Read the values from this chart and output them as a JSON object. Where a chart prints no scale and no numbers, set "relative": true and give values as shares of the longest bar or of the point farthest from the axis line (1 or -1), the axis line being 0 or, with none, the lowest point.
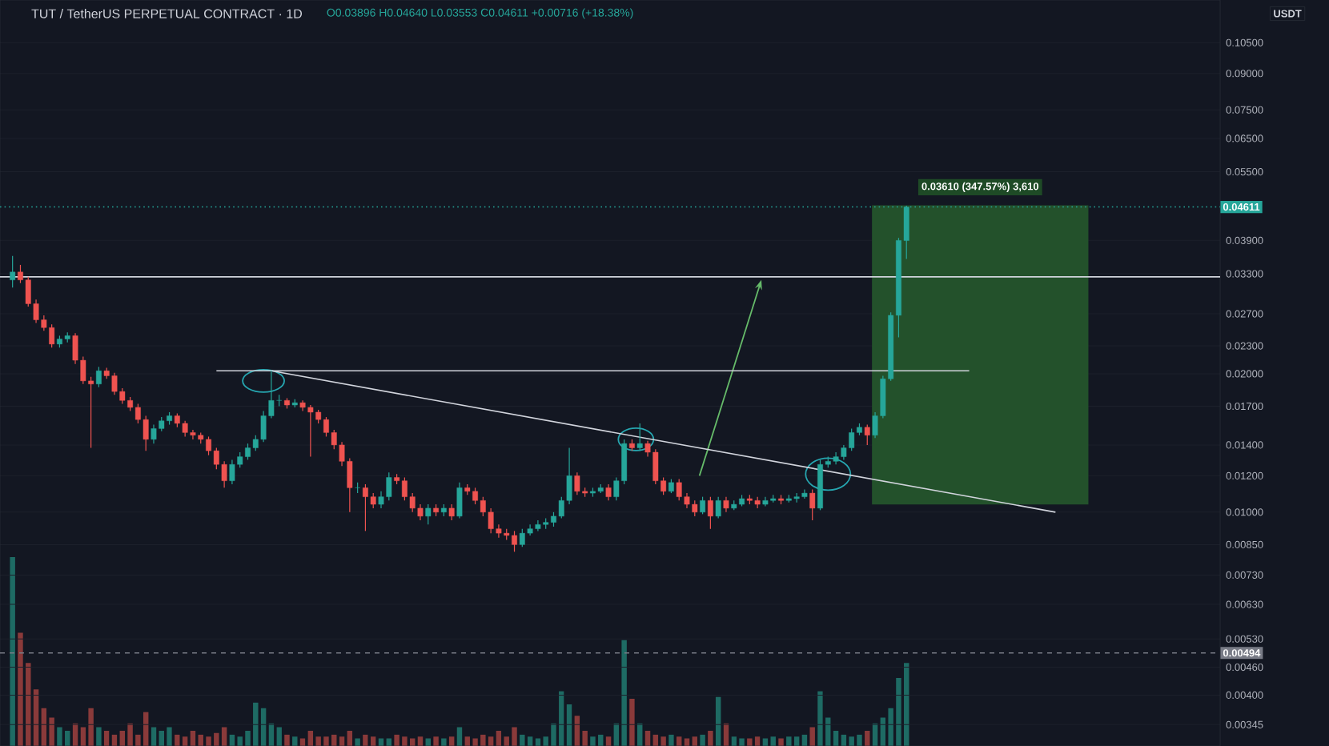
{
  "chart_data": [
    {
      "type": "candlestick",
      "title": "TUT / TetherUS PERPETUAL CONTRACT · 1D",
      "subtitle": "O0.03896 H0.04640 L0.03553 C0.04611 +0.00716 (+18.38%)",
      "ylabel": "USDT",
      "bands": [
        {
          "axis": "y",
          "from": 0.01039,
          "to": 0.04649,
          "label": "0.03610 (347.57%) 3,610",
          "color": "#23512b"
        }
      ],
      "log": "y",
      "grid": "y",
      "ylim": [
        0.0031,
        0.13
      ],
      "yticks": [
        {
          "value": 0.105,
          "label": "0.10500"
        },
        {
          "value": 0.09,
          "label": "0.09000"
        },
        {
          "value": 0.075,
          "label": "0.07500"
        },
        {
          "value": 0.065,
          "label": "0.06500"
        },
        {
          "value": 0.055,
          "label": "0.05500"
        },
        {
          "value": 0.039,
          "label": "0.03900"
        },
        {
          "value": 0.033,
          "label": "0.03300"
        },
        {
          "value": 0.027,
          "label": "0.02700"
        },
        {
          "value": 0.023,
          "label": "0.02300"
        },
        {
          "value": 0.02,
          "label": "0.02000"
        },
        {
          "value": 0.017,
          "label": "0.01700"
        },
        {
          "value": 0.014,
          "label": "0.01400"
        },
        {
          "value": 0.012,
          "label": "0.01200"
        },
        {
          "value": 0.01,
          "label": "0.01000"
        },
        {
          "value": 0.0085,
          "label": "0.00850"
        },
        {
          "value": 0.0073,
          "label": "0.00730"
        },
        {
          "value": 0.0063,
          "label": "0.00630"
        },
        {
          "value": 0.0053,
          "label": "0.00530"
        },
        {
          "value": 0.0046,
          "label": "0.00460"
        },
        {
          "value": 0.004,
          "label": "0.00400"
        },
        {
          "value": 0.00345,
          "label": "0.00345"
        }
      ],
      "ref_lines": [
        {
          "axis": "y",
          "value": 0.0325,
          "color": "#d1d4dc",
          "line_style": "solid"
        },
        {
          "axis": "y",
          "value": 0.04611,
          "label": "0.04611",
          "color": "#26a69a",
          "line_style": "dotted"
        },
        {
          "axis": "y",
          "value": 0.00494,
          "label": "0.00494",
          "color": "#787b86",
          "line_style": "dashed"
        }
      ],
      "categories": [
        null,
        null,
        null,
        null,
        null,
        null,
        null,
        null,
        null,
        null,
        null,
        null,
        null,
        null,
        null,
        null,
        null,
        null,
        null,
        null,
        null,
        null,
        null,
        null,
        null,
        null,
        null,
        null,
        null,
        null,
        null,
        null,
        null,
        null,
        null,
        null,
        null,
        null,
        null,
        null,
        null,
        null,
        null,
        null,
        null,
        null,
        null,
        null,
        null,
        null,
        null,
        null,
        null,
        null,
        null,
        null,
        null,
        null,
        null,
        null,
        null,
        null,
        null,
        null,
        null,
        null,
        null,
        null,
        null,
        null,
        null,
        null,
        null,
        null,
        null,
        null,
        null,
        null,
        null,
        null,
        null,
        null,
        null,
        null,
        null,
        null,
        null,
        null,
        null,
        null,
        null,
        null,
        null,
        null,
        null,
        null,
        null,
        null,
        null,
        null,
        null,
        null,
        null,
        null,
        null,
        null,
        null,
        null,
        null,
        null,
        null,
        null,
        null,
        null,
        null,
        null,
        null,
        null,
        null,
        null,
        null,
        null,
        null,
        null,
        null,
        null,
        null,
        null,
        null,
        null,
        null,
        null,
        null,
        null,
        null,
        null,
        null,
        null,
        null,
        null,
        null,
        null,
        null,
        null,
        null,
        null,
        null,
        null,
        null,
        null,
        null,
        null,
        null,
        null
      ],
      "ohlc": [
        [
          0.032,
          0.0361,
          0.0308,
          0.0333
        ],
        [
          0.0333,
          0.0345,
          0.0315,
          0.032
        ],
        [
          0.032,
          0.0325,
          0.028,
          0.0284
        ],
        [
          0.0284,
          0.029,
          0.0258,
          0.0262
        ],
        [
          0.0262,
          0.0268,
          0.0248,
          0.0252
        ],
        [
          0.0252,
          0.0256,
          0.0228,
          0.0232
        ],
        [
          0.0232,
          0.0242,
          0.0228,
          0.0238
        ],
        [
          0.0238,
          0.0246,
          0.0234,
          0.0242
        ],
        [
          0.0242,
          0.0245,
          0.021,
          0.0214
        ],
        [
          0.0214,
          0.0218,
          0.019,
          0.0193
        ],
        [
          0.0193,
          0.0197,
          0.0138,
          0.019
        ],
        [
          0.019,
          0.0207,
          0.0187,
          0.0203
        ],
        [
          0.0203,
          0.0206,
          0.0195,
          0.0198
        ],
        [
          0.0198,
          0.0201,
          0.018,
          0.0183
        ],
        [
          0.0183,
          0.0186,
          0.0172,
          0.0175
        ],
        [
          0.0175,
          0.0178,
          0.0166,
          0.0169
        ],
        [
          0.0169,
          0.0172,
          0.0156,
          0.0159
        ],
        [
          0.0159,
          0.0162,
          0.0136,
          0.0144
        ],
        [
          0.0144,
          0.0155,
          0.0141,
          0.0152
        ],
        [
          0.0152,
          0.0161,
          0.015,
          0.0158
        ],
        [
          0.0158,
          0.0165,
          0.0155,
          0.0162
        ],
        [
          0.0162,
          0.0164,
          0.0153,
          0.0156
        ],
        [
          0.0156,
          0.0158,
          0.0146,
          0.0149
        ],
        [
          0.0149,
          0.0151,
          0.0144,
          0.0147
        ],
        [
          0.0147,
          0.0149,
          0.0141,
          0.0144
        ],
        [
          0.0144,
          0.0146,
          0.0133,
          0.0136
        ],
        [
          0.0136,
          0.0138,
          0.0124,
          0.0127
        ],
        [
          0.0127,
          0.0129,
          0.0113,
          0.0117
        ],
        [
          0.0117,
          0.013,
          0.0115,
          0.0127
        ],
        [
          0.0127,
          0.0135,
          0.0125,
          0.0132
        ],
        [
          0.0132,
          0.0141,
          0.013,
          0.0138
        ],
        [
          0.0138,
          0.0147,
          0.0136,
          0.0144
        ],
        [
          0.0144,
          0.0166,
          0.0142,
          0.0162
        ],
        [
          0.0162,
          0.0203,
          0.016,
          0.0175
        ],
        [
          0.0175,
          0.018,
          0.017,
          0.0175
        ],
        [
          0.0175,
          0.0177,
          0.0168,
          0.0171
        ],
        [
          0.0171,
          0.0176,
          0.0169,
          0.0173
        ],
        [
          0.0173,
          0.0175,
          0.0166,
          0.0169
        ],
        [
          0.0169,
          0.0171,
          0.0132,
          0.0165
        ],
        [
          0.0165,
          0.0167,
          0.0156,
          0.0159
        ],
        [
          0.0159,
          0.0161,
          0.0146,
          0.0149
        ],
        [
          0.0149,
          0.0151,
          0.0137,
          0.014
        ],
        [
          0.014,
          0.0142,
          0.0126,
          0.0129
        ],
        [
          0.0129,
          0.0131,
          0.01,
          0.0113
        ],
        [
          0.0113,
          0.0116,
          0.011,
          0.0113
        ],
        [
          0.0113,
          0.0115,
          0.0091,
          0.0108
        ],
        [
          0.0108,
          0.011,
          0.0102,
          0.0104
        ],
        [
          0.0104,
          0.0111,
          0.0102,
          0.0108
        ],
        [
          0.0108,
          0.0122,
          0.0106,
          0.0119
        ],
        [
          0.0119,
          0.0121,
          0.0115,
          0.0117
        ],
        [
          0.0117,
          0.0119,
          0.0106,
          0.0108
        ],
        [
          0.0108,
          0.011,
          0.01,
          0.0102
        ],
        [
          0.0102,
          0.0104,
          0.0096,
          0.0098
        ],
        [
          0.0098,
          0.0104,
          0.0094,
          0.0102
        ],
        [
          0.0102,
          0.0104,
          0.0098,
          0.01
        ],
        [
          0.01,
          0.0104,
          0.0098,
          0.0102
        ],
        [
          0.0102,
          0.0104,
          0.0096,
          0.0098
        ],
        [
          0.0098,
          0.0116,
          0.0097,
          0.0113
        ],
        [
          0.0113,
          0.0115,
          0.0109,
          0.0111
        ],
        [
          0.0111,
          0.0113,
          0.0104,
          0.0106
        ],
        [
          0.0106,
          0.0108,
          0.0098,
          0.01
        ],
        [
          0.01,
          0.0102,
          0.009,
          0.0092
        ],
        [
          0.0092,
          0.0094,
          0.0088,
          0.009
        ],
        [
          0.009,
          0.0092,
          0.0087,
          0.0089
        ],
        [
          0.0089,
          0.0091,
          0.0082,
          0.0085
        ],
        [
          0.0085,
          0.0092,
          0.0084,
          0.009
        ],
        [
          0.009,
          0.0094,
          0.0089,
          0.0092
        ],
        [
          0.0092,
          0.0096,
          0.0091,
          0.0094
        ],
        [
          0.0094,
          0.0097,
          0.0092,
          0.0095
        ],
        [
          0.0095,
          0.01,
          0.0093,
          0.0098
        ],
        [
          0.0098,
          0.0108,
          0.0097,
          0.0106
        ],
        [
          0.0106,
          0.0138,
          0.0104,
          0.012
        ],
        [
          0.012,
          0.0122,
          0.0109,
          0.0111
        ],
        [
          0.0111,
          0.0113,
          0.0108,
          0.011
        ],
        [
          0.011,
          0.0113,
          0.0108,
          0.0111
        ],
        [
          0.0111,
          0.0115,
          0.011,
          0.0113
        ],
        [
          0.0113,
          0.0115,
          0.0106,
          0.0108
        ],
        [
          0.0108,
          0.0119,
          0.0106,
          0.0117
        ],
        [
          0.0117,
          0.0144,
          0.0115,
          0.0141
        ],
        [
          0.0141,
          0.0144,
          0.0136,
          0.0138
        ],
        [
          0.0138,
          0.0156,
          0.0136,
          0.0141
        ],
        [
          0.0141,
          0.0143,
          0.0132,
          0.0135
        ],
        [
          0.0135,
          0.0137,
          0.0115,
          0.0117
        ],
        [
          0.0117,
          0.0119,
          0.0109,
          0.0111
        ],
        [
          0.0111,
          0.0118,
          0.011,
          0.0116
        ],
        [
          0.0116,
          0.0118,
          0.0106,
          0.0108
        ],
        [
          0.0108,
          0.011,
          0.0102,
          0.0104
        ],
        [
          0.0104,
          0.0106,
          0.0098,
          0.01
        ],
        [
          0.01,
          0.0108,
          0.0099,
          0.0106
        ],
        [
          0.0106,
          0.0108,
          0.0092,
          0.0098
        ],
        [
          0.0098,
          0.0108,
          0.0097,
          0.0106
        ],
        [
          0.0106,
          0.0108,
          0.01,
          0.0102
        ],
        [
          0.0102,
          0.0106,
          0.0101,
          0.0104
        ],
        [
          0.0104,
          0.0109,
          0.0103,
          0.0107
        ],
        [
          0.0107,
          0.0109,
          0.0104,
          0.0106
        ],
        [
          0.0106,
          0.0108,
          0.0102,
          0.0104
        ],
        [
          0.0104,
          0.0108,
          0.0103,
          0.0106
        ],
        [
          0.0106,
          0.0109,
          0.0105,
          0.0107
        ],
        [
          0.0107,
          0.0109,
          0.0104,
          0.0106
        ],
        [
          0.0106,
          0.0109,
          0.0105,
          0.0107
        ],
        [
          0.0107,
          0.011,
          0.0105,
          0.0108
        ],
        [
          0.0108,
          0.0112,
          0.0107,
          0.011
        ],
        [
          0.011,
          0.0112,
          0.0096,
          0.0102
        ],
        [
          0.0102,
          0.013,
          0.0101,
          0.0127
        ],
        [
          0.0127,
          0.0132,
          0.0125,
          0.0129
        ],
        [
          0.0129,
          0.0135,
          0.0127,
          0.0132
        ],
        [
          0.0132,
          0.014,
          0.013,
          0.0138
        ],
        [
          0.0138,
          0.0152,
          0.0136,
          0.0149
        ],
        [
          0.0149,
          0.0156,
          0.0147,
          0.0153
        ],
        [
          0.0153,
          0.0155,
          0.014,
          0.0147
        ],
        [
          0.0147,
          0.0165,
          0.0145,
          0.0162
        ],
        [
          0.0162,
          0.0198,
          0.016,
          0.0195
        ],
        [
          0.0195,
          0.0272,
          0.0193,
          0.0268
        ],
        [
          0.0268,
          0.0395,
          0.024,
          0.039
        ],
        [
          0.03896,
          0.0464,
          0.03553,
          0.04611
        ],
        null,
        null,
        null,
        null,
        null,
        null,
        null,
        null,
        null,
        null,
        null,
        null,
        null,
        null,
        null,
        null,
        null,
        null,
        null,
        null,
        null,
        null,
        null,
        null,
        null,
        null,
        null,
        null,
        null,
        null,
        null,
        null,
        null,
        null,
        null,
        null,
        null,
        null,
        null
      ],
      "series": [
        {
          "type": "line",
          "color": "#d1d4dc",
          "values": [
            null,
            null,
            null,
            null,
            null,
            null,
            null,
            null,
            null,
            null,
            null,
            null,
            null,
            null,
            null,
            null,
            null,
            null,
            null,
            null,
            null,
            null,
            null,
            null,
            null,
            null,
            null,
            null,
            null,
            null,
            null,
            null,
            null,
            0.0203,
            null,
            null,
            null,
            null,
            null,
            null,
            null,
            null,
            null,
            null,
            null,
            null,
            null,
            null,
            null,
            null,
            null,
            null,
            null,
            null,
            null,
            null,
            null,
            null,
            null,
            null,
            null,
            null,
            null,
            null,
            null,
            null,
            null,
            null,
            null,
            null,
            null,
            null,
            null,
            null,
            null,
            null,
            null,
            null,
            null,
            null,
            null,
            null,
            null,
            null,
            null,
            null,
            null,
            null,
            null,
            null,
            null,
            null,
            null,
            null,
            null,
            null,
            null,
            null,
            null,
            null,
            null,
            null,
            null,
            null,
            null,
            null,
            null,
            null,
            null,
            null,
            null,
            null,
            null,
            null,
            null,
            null,
            null,
            null,
            null,
            null,
            null,
            null,
            null,
            null,
            null,
            null,
            null,
            null,
            null,
            null,
            null,
            null,
            null,
            0.01,
            null,
            null,
            null,
            null,
            null,
            null,
            null,
            null,
            null,
            null,
            null,
            null,
            null,
            null,
            null,
            null,
            null,
            null,
            null,
            null
          ]
        },
        {
          "type": "line",
          "color": "#d1d4dc",
          "values": [
            null,
            null,
            null,
            null,
            null,
            null,
            null,
            null,
            null,
            null,
            null,
            null,
            null,
            null,
            null,
            null,
            null,
            null,
            null,
            null,
            null,
            null,
            null,
            null,
            null,
            null,
            0.0203,
            null,
            null,
            null,
            null,
            null,
            null,
            null,
            null,
            null,
            null,
            null,
            null,
            null,
            null,
            null,
            null,
            null,
            null,
            null,
            null,
            null,
            null,
            null,
            null,
            null,
            null,
            null,
            null,
            null,
            null,
            null,
            null,
            null,
            null,
            null,
            null,
            null,
            null,
            null,
            null,
            null,
            null,
            null,
            null,
            null,
            null,
            null,
            null,
            null,
            null,
            null,
            null,
            null,
            null,
            null,
            null,
            null,
            null,
            null,
            null,
            null,
            null,
            null,
            null,
            null,
            null,
            null,
            null,
            null,
            null,
            null,
            null,
            null,
            null,
            null,
            null,
            null,
            null,
            null,
            null,
            null,
            null,
            null,
            null,
            null,
            null,
            null,
            null,
            null,
            null,
            null,
            null,
            null,
            null,
            null,
            0.0203,
            null,
            null,
            null,
            null,
            null,
            null,
            null,
            null,
            null,
            null,
            null,
            null,
            null,
            null,
            null,
            null,
            null,
            null,
            null,
            null,
            null,
            null,
            null,
            null,
            null,
            null,
            null,
            null,
            null,
            null,
            null
          ]
        }
      ]
    },
    {
      "type": "bar",
      "relative": true,
      "categories": [
        null,
        null,
        null,
        null,
        null,
        null,
        null,
        null,
        null,
        null,
        null,
        null,
        null,
        null,
        null,
        null,
        null,
        null,
        null,
        null,
        null,
        null,
        null,
        null,
        null,
        null,
        null,
        null,
        null,
        null,
        null,
        null,
        null,
        null,
        null,
        null,
        null,
        null,
        null,
        null,
        null,
        null,
        null,
        null,
        null,
        null,
        null,
        null,
        null,
        null,
        null,
        null,
        null,
        null,
        null,
        null,
        null,
        null,
        null,
        null,
        null,
        null,
        null,
        null,
        null,
        null,
        null,
        null,
        null,
        null,
        null,
        null,
        null,
        null,
        null,
        null,
        null,
        null,
        null,
        null,
        null,
        null,
        null,
        null,
        null,
        null,
        null,
        null,
        null,
        null,
        null,
        null,
        null,
        null,
        null,
        null,
        null,
        null,
        null,
        null,
        null,
        null,
        null,
        null,
        null,
        null,
        null,
        null,
        null,
        null,
        null,
        null,
        null,
        null,
        null,
        null,
        null,
        null,
        null,
        null,
        null,
        null,
        null,
        null,
        null,
        null,
        null,
        null,
        null,
        null,
        null,
        null,
        null,
        null,
        null,
        null,
        null,
        null,
        null,
        null,
        null,
        null,
        null,
        null,
        null,
        null,
        null,
        null,
        null,
        null,
        null,
        null,
        null,
        null
      ],
      "values": [
        1,
        0.6,
        0.44,
        0.3,
        0.2,
        0.15,
        0.1,
        0.08,
        0.12,
        0.1,
        0.2,
        0.1,
        0.08,
        0.06,
        0.08,
        0.12,
        0.06,
        0.18,
        0.1,
        0.08,
        0.1,
        0.06,
        0.05,
        0.08,
        0.06,
        0.05,
        0.07,
        0.1,
        0.06,
        0.05,
        0.08,
        0.23,
        0.2,
        0.12,
        0.1,
        0.06,
        0.05,
        0.04,
        0.08,
        0.05,
        0.05,
        0.06,
        0.05,
        0.08,
        0.04,
        0.06,
        0.05,
        0.04,
        0.04,
        0.06,
        0.05,
        0.04,
        0.05,
        0.04,
        0.05,
        0.04,
        0.05,
        0.1,
        0.05,
        0.04,
        0.06,
        0.05,
        0.08,
        0.05,
        0.1,
        0.06,
        0.05,
        0.04,
        0.05,
        0.12,
        0.29,
        0.22,
        0.16,
        0.08,
        0.05,
        0.06,
        0.05,
        0.12,
        0.56,
        0.25,
        0.12,
        0.08,
        0.06,
        0.05,
        0.06,
        0.05,
        0.04,
        0.05,
        0.06,
        0.08,
        0.26,
        0.12,
        0.05,
        0.04,
        0.04,
        0.05,
        0.04,
        0.05,
        0.04,
        0.05,
        0.05,
        0.06,
        0.1,
        0.29,
        0.15,
        0.08,
        0.06,
        0.05,
        0.06,
        0.08,
        0.12,
        0.15,
        0.2,
        0.36,
        0.44,
        null,
        null,
        null,
        null,
        null,
        null,
        null,
        null,
        null,
        null,
        null,
        null,
        null,
        null,
        null,
        null,
        null,
        null,
        null,
        null,
        null,
        null,
        null,
        null,
        null,
        null,
        null,
        null,
        null,
        null,
        null,
        null,
        null,
        null,
        null,
        null,
        null,
        null,
        null
      ]
    }
  ]
}
